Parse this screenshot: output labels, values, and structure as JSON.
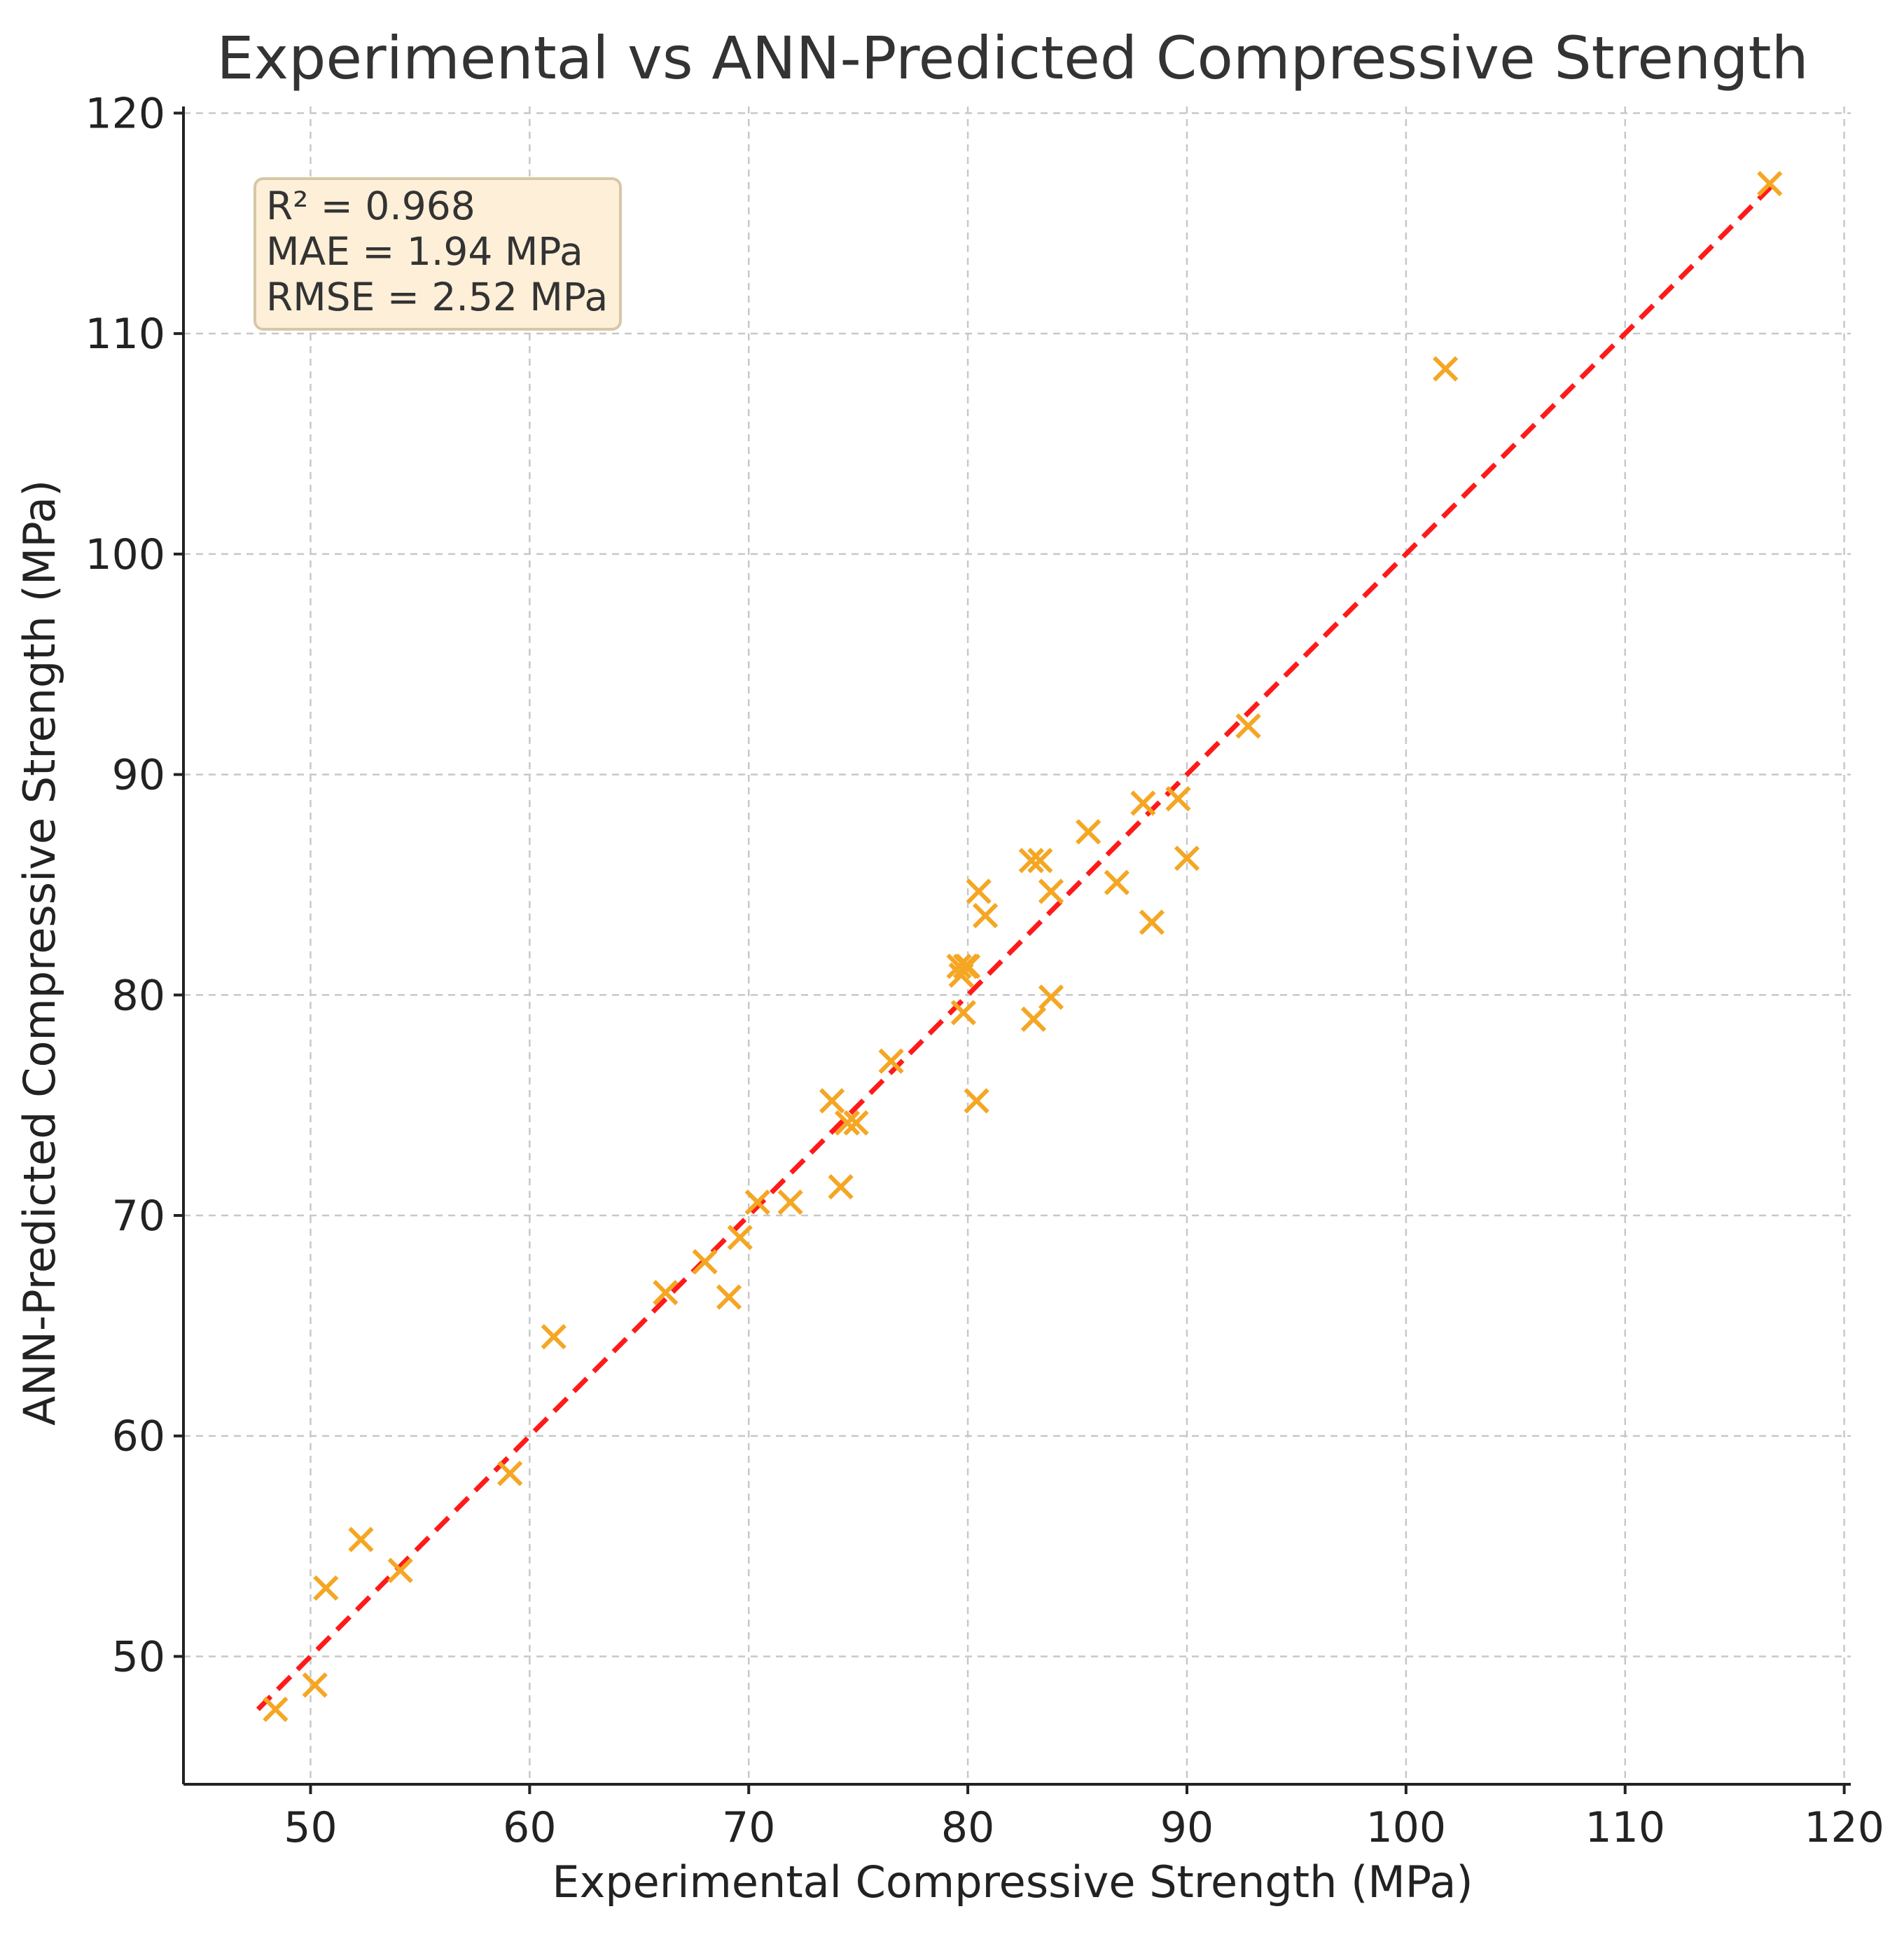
{
  "chart_data": {
    "type": "scatter",
    "title": "Experimental vs ANN-Predicted Compressive Strength",
    "xlabel": "Experimental Compressive Strength (MPa)",
    "ylabel": "ANN-Predicted Compressive Strength (MPa)",
    "xlim": [
      44.2,
      120.3
    ],
    "ylim": [
      44.2,
      120.3
    ],
    "xticks": [
      50,
      60,
      70,
      80,
      90,
      100,
      110,
      120
    ],
    "yticks": [
      50,
      60,
      70,
      80,
      90,
      100,
      110,
      120
    ],
    "grid": true,
    "marker": "x",
    "marker_color": "#f5a623",
    "series": [
      {
        "x": [
          48.4,
          50.2,
          50.7,
          52.3,
          54.1,
          59.1,
          61.1,
          66.2,
          68.0,
          69.1,
          69.6,
          70.4,
          71.9,
          73.8,
          74.2,
          74.5,
          74.9,
          76.5,
          79.6,
          79.7,
          79.8,
          79.9,
          80.0,
          80.4,
          80.5,
          80.8,
          82.9,
          83.0,
          83.3,
          83.8,
          83.8,
          85.5,
          86.8,
          88.0,
          88.4,
          89.6,
          90.0,
          92.8,
          101.8,
          116.6
        ],
        "y": [
          47.6,
          48.7,
          53.1,
          55.3,
          53.9,
          58.3,
          64.5,
          66.5,
          67.9,
          66.3,
          69.0,
          70.6,
          70.6,
          75.2,
          71.3,
          74.2,
          74.2,
          77.0,
          81.3,
          80.9,
          79.2,
          81.3,
          81.3,
          75.2,
          84.7,
          83.6,
          86.1,
          78.9,
          86.1,
          84.7,
          79.9,
          87.4,
          85.1,
          88.7,
          83.3,
          88.9,
          86.2,
          92.2,
          108.4,
          116.8
        ]
      }
    ],
    "reference_line": {
      "style": "dashed",
      "color": "#ff1a1a",
      "x": [
        47.6,
        116.8
      ],
      "y": [
        47.6,
        116.8
      ]
    },
    "annotation": {
      "lines": [
        "R² = 0.968",
        "MAE = 1.94 MPa",
        "RMSE = 2.52 MPa"
      ],
      "location": "top-left",
      "background": "#fdefd8"
    }
  }
}
